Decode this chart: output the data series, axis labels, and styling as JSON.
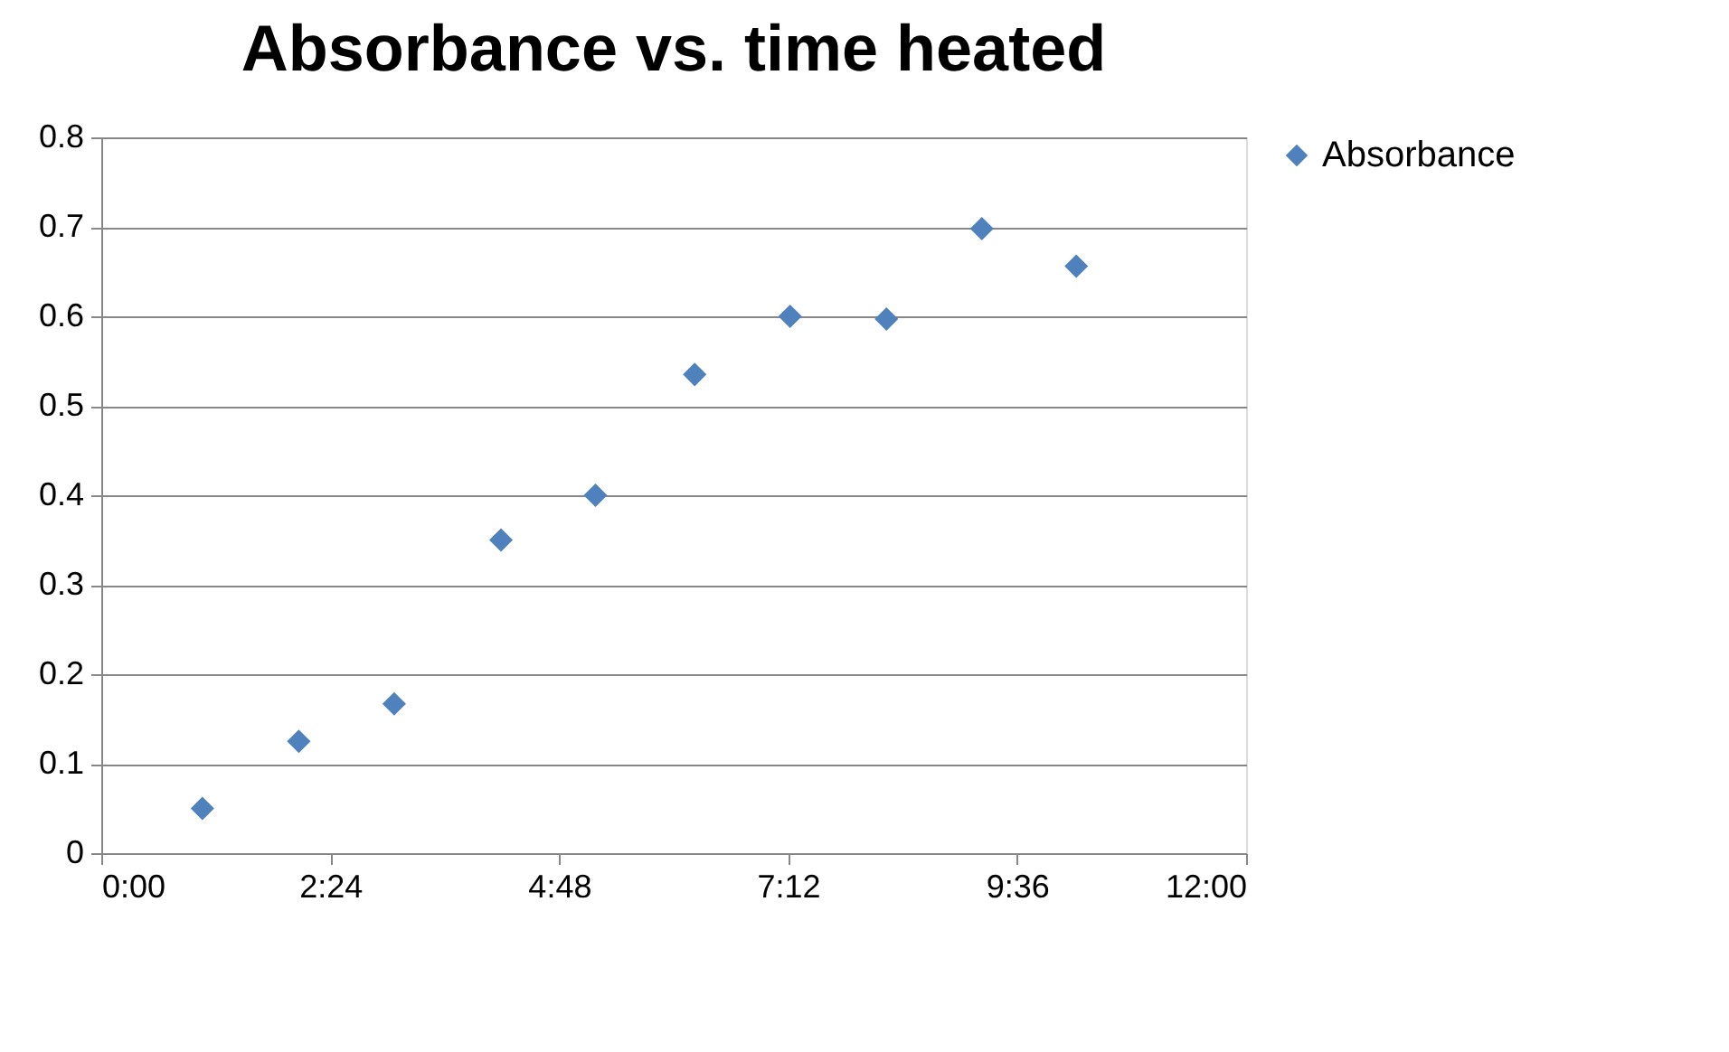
{
  "chart_data": {
    "type": "scatter",
    "title": "Absorbance vs. time heated",
    "x": [
      1.06,
      2.07,
      3.07,
      4.19,
      5.18,
      6.22,
      7.22,
      8.23,
      9.23,
      10.22
    ],
    "series": [
      {
        "name": "Absorbance",
        "color": "#4f81bd",
        "values": [
          0.05,
          0.125,
          0.167,
          0.35,
          0.4,
          0.535,
          0.6,
          0.597,
          0.698,
          0.656
        ]
      }
    ],
    "xlim": [
      0,
      12
    ],
    "xticks": [
      {
        "value": 0,
        "label": "0:00"
      },
      {
        "value": 2.4,
        "label": "2:24"
      },
      {
        "value": 4.8,
        "label": "4:48"
      },
      {
        "value": 7.2,
        "label": "7:12"
      },
      {
        "value": 9.6,
        "label": "9:36"
      },
      {
        "value": 12,
        "label": "12:00"
      }
    ],
    "ylim": [
      0,
      0.8
    ],
    "yticks": [
      0,
      0.1,
      0.2,
      0.3,
      0.4,
      0.5,
      0.6,
      0.7,
      0.8
    ],
    "grid": "y",
    "legend": "right",
    "marker": "diamond"
  }
}
